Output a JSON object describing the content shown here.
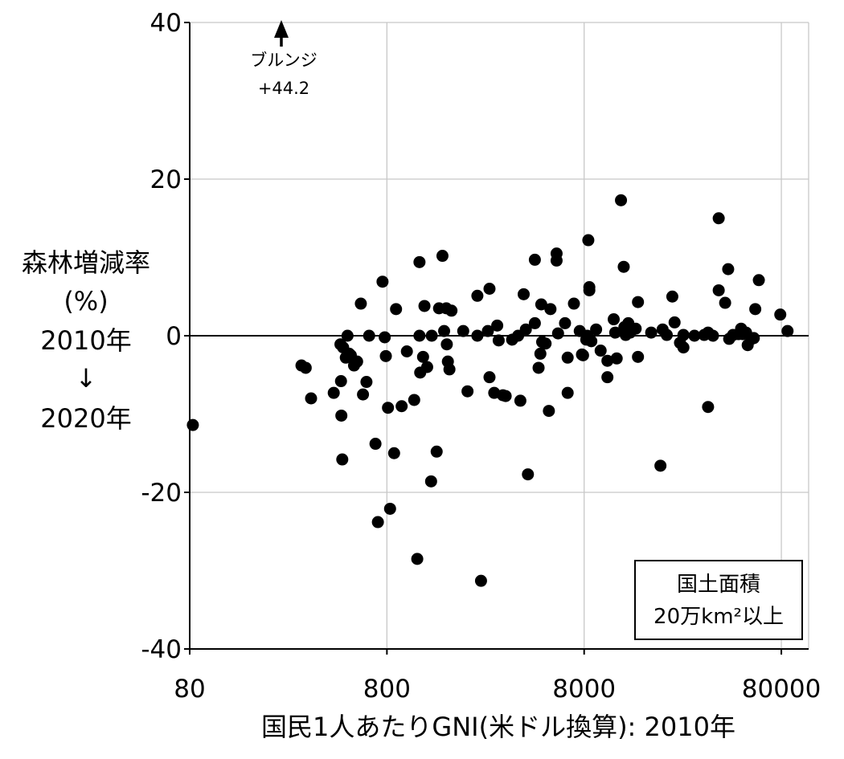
{
  "chart_data": {
    "type": "scatter",
    "x_scale": "log",
    "xlim": [
      80,
      110000
    ],
    "ylim": [
      -40,
      40
    ],
    "x_ticks": [
      80,
      800,
      8000,
      80000
    ],
    "x_tick_labels": [
      "80",
      "800",
      "8000",
      "80000"
    ],
    "y_ticks": [
      -40,
      -20,
      0,
      20,
      40
    ],
    "y_tick_labels": [
      "-40",
      "-20",
      "0",
      "20",
      "40"
    ],
    "grid": true,
    "reference_line_y": 0,
    "xlabel": "国民1人あたりGNI(米ドル換算): 2010年",
    "ylabel_lines": [
      "森林増減率",
      "(%)",
      "2010年",
      "↓",
      "2020年"
    ],
    "legend_box_lines": [
      "国土面積",
      "20万km²以上"
    ],
    "annotation": {
      "lines": [
        "ブルンジ",
        "+44.2"
      ],
      "x": 210,
      "y": 44.2
    },
    "points": [
      [
        83,
        -11.4
      ],
      [
        295,
        -3.8
      ],
      [
        310,
        -4.1
      ],
      [
        330,
        -8.0
      ],
      [
        430,
        -7.3
      ],
      [
        465,
        -1.1
      ],
      [
        468,
        -5.8
      ],
      [
        470,
        -10.2
      ],
      [
        475,
        -15.8
      ],
      [
        480,
        -1.5
      ],
      [
        495,
        -2.8
      ],
      [
        505,
        0.0
      ],
      [
        515,
        -2.3
      ],
      [
        525,
        -2.5
      ],
      [
        545,
        -3.8
      ],
      [
        565,
        -3.3
      ],
      [
        590,
        4.1
      ],
      [
        605,
        -7.5
      ],
      [
        630,
        -5.9
      ],
      [
        650,
        0.0
      ],
      [
        700,
        -13.8
      ],
      [
        720,
        -23.8
      ],
      [
        760,
        6.9
      ],
      [
        780,
        -0.2
      ],
      [
        790,
        -2.6
      ],
      [
        810,
        -9.2
      ],
      [
        830,
        -22.1
      ],
      [
        870,
        -15.0
      ],
      [
        890,
        3.4
      ],
      [
        950,
        -9.0
      ],
      [
        1010,
        -2.0
      ],
      [
        1100,
        -8.2
      ],
      [
        1140,
        -28.5
      ],
      [
        1170,
        9.4
      ],
      [
        1170,
        0.0
      ],
      [
        1180,
        -4.7
      ],
      [
        1220,
        -2.7
      ],
      [
        1240,
        3.8
      ],
      [
        1280,
        -4.0
      ],
      [
        1340,
        -18.6
      ],
      [
        1350,
        0.0
      ],
      [
        1430,
        -14.8
      ],
      [
        1470,
        3.5
      ],
      [
        1530,
        10.2
      ],
      [
        1560,
        0.6
      ],
      [
        1600,
        3.5
      ],
      [
        1610,
        -1.1
      ],
      [
        1630,
        -3.3
      ],
      [
        1660,
        -4.3
      ],
      [
        1700,
        3.2
      ],
      [
        1950,
        0.6
      ],
      [
        2050,
        -7.1
      ],
      [
        2300,
        5.1
      ],
      [
        2400,
        -31.3
      ],
      [
        2300,
        0.0
      ],
      [
        2600,
        0.6
      ],
      [
        2650,
        6.0
      ],
      [
        2650,
        -5.3
      ],
      [
        2800,
        -7.3
      ],
      [
        2900,
        1.3
      ],
      [
        2950,
        -0.6
      ],
      [
        3100,
        -7.6
      ],
      [
        3200,
        -7.7
      ],
      [
        3450,
        -0.5
      ],
      [
        3700,
        0.0
      ],
      [
        3800,
        -8.3
      ],
      [
        3950,
        5.3
      ],
      [
        4050,
        0.8
      ],
      [
        4150,
        -17.7
      ],
      [
        4500,
        9.7
      ],
      [
        4500,
        1.6
      ],
      [
        4700,
        -4.1
      ],
      [
        4800,
        -2.3
      ],
      [
        4850,
        4.0
      ],
      [
        4900,
        -0.8
      ],
      [
        5100,
        -1.0
      ],
      [
        5300,
        -9.6
      ],
      [
        5400,
        3.4
      ],
      [
        5800,
        10.5
      ],
      [
        5800,
        9.6
      ],
      [
        5900,
        0.3
      ],
      [
        6400,
        1.6
      ],
      [
        6600,
        -7.3
      ],
      [
        6600,
        -2.8
      ],
      [
        7100,
        4.1
      ],
      [
        7600,
        0.6
      ],
      [
        7800,
        -2.4
      ],
      [
        7900,
        -2.5
      ],
      [
        8200,
        -0.5
      ],
      [
        8300,
        0.0
      ],
      [
        8400,
        12.2
      ],
      [
        8500,
        6.2
      ],
      [
        8500,
        5.8
      ],
      [
        8700,
        -0.7
      ],
      [
        9200,
        0.8
      ],
      [
        9700,
        -1.9
      ],
      [
        10500,
        -5.3
      ],
      [
        10500,
        -3.2
      ],
      [
        11300,
        2.1
      ],
      [
        11500,
        0.4
      ],
      [
        11700,
        -2.9
      ],
      [
        12300,
        17.3
      ],
      [
        12700,
        8.8
      ],
      [
        12800,
        1.1
      ],
      [
        13000,
        0.1
      ],
      [
        13400,
        1.6
      ],
      [
        13700,
        0.4
      ],
      [
        14600,
        0.9
      ],
      [
        15000,
        4.3
      ],
      [
        15000,
        -2.7
      ],
      [
        17500,
        0.4
      ],
      [
        19500,
        -16.6
      ],
      [
        20000,
        0.8
      ],
      [
        21000,
        0.1
      ],
      [
        22400,
        5.0
      ],
      [
        23000,
        1.7
      ],
      [
        24500,
        -0.9
      ],
      [
        25500,
        -1.5
      ],
      [
        25500,
        0.1
      ],
      [
        29000,
        0.0
      ],
      [
        32500,
        0.1
      ],
      [
        34000,
        -9.1
      ],
      [
        34000,
        0.4
      ],
      [
        36000,
        0.0
      ],
      [
        38500,
        15.0
      ],
      [
        38500,
        5.8
      ],
      [
        41500,
        4.2
      ],
      [
        43000,
        8.5
      ],
      [
        43500,
        -0.4
      ],
      [
        45500,
        0.1
      ],
      [
        48500,
        0.2
      ],
      [
        50000,
        0.9
      ],
      [
        51000,
        0.2
      ],
      [
        53000,
        0.4
      ],
      [
        54000,
        -1.2
      ],
      [
        56500,
        -0.4
      ],
      [
        58000,
        -0.3
      ],
      [
        59000,
        3.4
      ],
      [
        61500,
        7.1
      ],
      [
        79000,
        2.7
      ],
      [
        86000,
        0.6
      ]
    ]
  }
}
